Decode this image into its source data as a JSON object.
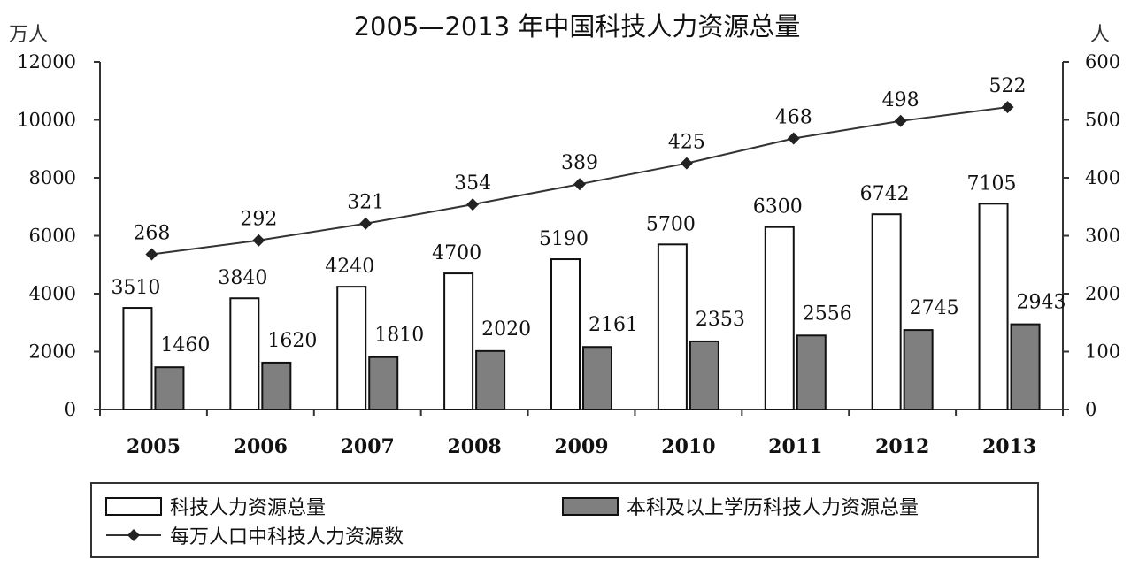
{
  "chart_data": {
    "type": "bar",
    "title": "2005—2013 年中国科技人力资源总量",
    "y_left_unit": "万人",
    "y_right_unit": "人",
    "categories": [
      "2005",
      "2006",
      "2007",
      "2008",
      "2009",
      "2010",
      "2011",
      "2012",
      "2013"
    ],
    "ylim_left": [
      0,
      12000
    ],
    "yticks_left": [
      "0",
      "2000",
      "4000",
      "6000",
      "8000",
      "10000",
      "12000"
    ],
    "ylim_right": [
      0,
      600
    ],
    "yticks_right": [
      "0",
      "100",
      "200",
      "300",
      "400",
      "500",
      "600"
    ],
    "series": [
      {
        "name": "科技人力资源总量",
        "type": "bar",
        "axis": "left",
        "color": "#ffffff",
        "values": [
          3510,
          3840,
          4240,
          4700,
          5190,
          5700,
          6300,
          6742,
          7105
        ],
        "labels": [
          "3510",
          "3840",
          "4240",
          "4700",
          "5190",
          "5700",
          "6300",
          "6742",
          "7105"
        ]
      },
      {
        "name": "本科及以上学历科技人力资源总量",
        "type": "bar",
        "axis": "left",
        "color": "#7f7f7f",
        "values": [
          1460,
          1620,
          1810,
          2020,
          2161,
          2353,
          2556,
          2745,
          2943
        ],
        "labels": [
          "1460",
          "1620",
          "1810",
          "2020",
          "2161",
          "2353",
          "2556",
          "2745",
          "2943"
        ]
      },
      {
        "name": "每万人口中科技人力资源数",
        "type": "line",
        "axis": "right",
        "color": "#333333",
        "values": [
          268,
          292,
          321,
          354,
          389,
          425,
          468,
          498,
          522
        ],
        "labels": [
          "268",
          "292",
          "321",
          "354",
          "389",
          "425",
          "468",
          "498",
          "522"
        ]
      }
    ],
    "grid": false,
    "legend_position": "bottom"
  }
}
